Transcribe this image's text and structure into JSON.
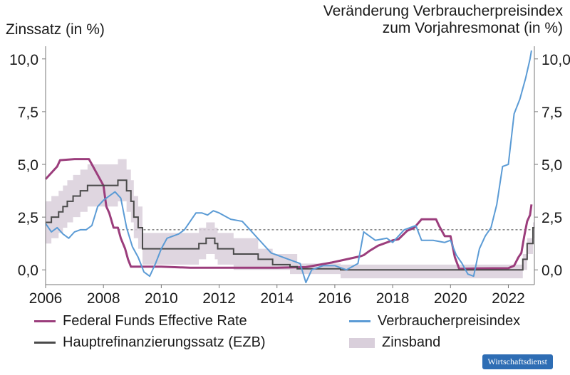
{
  "chart_data": {
    "type": "line",
    "left_axis_title": "Zinssatz (in %)",
    "right_axis_title_line1": "Veränderung Verbraucherpreisindex",
    "right_axis_title_line2": "zum Vorjahresmonat (in %)",
    "xlim": [
      2006,
      2022.9
    ],
    "ylim": [
      -0.7,
      10.6
    ],
    "x_ticks": [
      2006,
      2008,
      2010,
      2012,
      2014,
      2016,
      2018,
      2020,
      2022
    ],
    "x_tick_labels": [
      "2006",
      "2008",
      "2010",
      "2012",
      "2014",
      "2016",
      "2018",
      "2020",
      "2022"
    ],
    "y_ticks": [
      0,
      2.5,
      5,
      7.5,
      10
    ],
    "y_tick_labels": [
      "0,0",
      "2,5",
      "5,0",
      "7,5",
      "10,0"
    ],
    "reference_line": 1.9,
    "colors": {
      "fed": "#9b3d7c",
      "ezb": "#4a4a4a",
      "vpi": "#5b9bd5",
      "band": "#d9cfdb"
    },
    "series": [
      {
        "name": "Federal Funds Effective Rate",
        "style": "line",
        "color": "#9b3d7c",
        "x": [
          2006.0,
          2006.2,
          2006.4,
          2006.5,
          2007.0,
          2007.5,
          2007.6,
          2007.7,
          2007.8,
          2007.9,
          2008.0,
          2008.1,
          2008.2,
          2008.35,
          2008.5,
          2008.6,
          2008.75,
          2008.85,
          2008.95,
          2009.2,
          2010.0,
          2011.0,
          2012.0,
          2013.0,
          2014.0,
          2015.0,
          2015.9,
          2016.0,
          2016.9,
          2017.0,
          2017.2,
          2017.5,
          2018.0,
          2018.2,
          2018.5,
          2018.75,
          2019.0,
          2019.5,
          2019.6,
          2019.8,
          2020.0,
          2020.15,
          2020.3,
          2021.0,
          2022.0,
          2022.2,
          2022.35,
          2022.45,
          2022.55,
          2022.65,
          2022.75,
          2022.8
        ],
        "y": [
          4.3,
          4.6,
          4.9,
          5.2,
          5.25,
          5.25,
          5.0,
          4.75,
          4.5,
          4.25,
          4.0,
          3.0,
          2.7,
          2.0,
          2.0,
          1.5,
          1.0,
          0.5,
          0.15,
          0.15,
          0.15,
          0.1,
          0.1,
          0.1,
          0.1,
          0.13,
          0.35,
          0.38,
          0.65,
          0.7,
          0.9,
          1.15,
          1.4,
          1.45,
          1.85,
          2.0,
          2.4,
          2.4,
          2.1,
          1.6,
          1.6,
          0.6,
          0.05,
          0.07,
          0.08,
          0.2,
          0.6,
          0.8,
          1.6,
          2.3,
          2.6,
          3.1
        ]
      },
      {
        "name": "Hauptrefinanzierungssatz (EZB)",
        "style": "step",
        "color": "#4a4a4a",
        "x": [
          2006.0,
          2006.2,
          2006.45,
          2006.6,
          2006.75,
          2006.95,
          2007.2,
          2007.45,
          2008.5,
          2008.8,
          2008.95,
          2009.05,
          2009.2,
          2009.35,
          2011.3,
          2011.55,
          2011.85,
          2011.95,
          2012.5,
          2013.35,
          2013.85,
          2014.45,
          2014.7,
          2016.2,
          2022.5,
          2022.65,
          2022.85
        ],
        "y": [
          2.25,
          2.5,
          2.75,
          3.0,
          3.25,
          3.5,
          3.75,
          4.0,
          4.25,
          3.75,
          3.25,
          2.5,
          2.0,
          1.0,
          1.25,
          1.5,
          1.25,
          1.0,
          0.75,
          0.5,
          0.25,
          0.15,
          0.05,
          0.0,
          0.5,
          1.25,
          2.0
        ]
      },
      {
        "name": "Verbraucherpreisindex",
        "style": "line",
        "color": "#5b9bd5",
        "x": [
          2006.0,
          2006.2,
          2006.4,
          2006.6,
          2006.8,
          2007.0,
          2007.2,
          2007.4,
          2007.6,
          2007.8,
          2008.0,
          2008.2,
          2008.4,
          2008.6,
          2008.8,
          2009.0,
          2009.2,
          2009.4,
          2009.6,
          2009.8,
          2010.0,
          2010.2,
          2010.4,
          2010.6,
          2010.8,
          2011.0,
          2011.2,
          2011.4,
          2011.6,
          2011.8,
          2012.0,
          2012.4,
          2012.8,
          2013.0,
          2013.4,
          2013.8,
          2014.0,
          2014.4,
          2014.8,
          2015.0,
          2015.2,
          2015.6,
          2016.0,
          2016.4,
          2016.8,
          2017.0,
          2017.4,
          2017.8,
          2018.0,
          2018.4,
          2018.8,
          2019.0,
          2019.4,
          2019.8,
          2020.0,
          2020.2,
          2020.4,
          2020.6,
          2020.8,
          2021.0,
          2021.2,
          2021.4,
          2021.6,
          2021.8,
          2022.0,
          2022.2,
          2022.4,
          2022.6,
          2022.75,
          2022.8
        ],
        "y": [
          2.2,
          1.8,
          2.0,
          1.7,
          1.5,
          1.8,
          1.9,
          1.9,
          2.1,
          3.0,
          3.3,
          3.5,
          3.7,
          3.4,
          2.0,
          1.1,
          0.6,
          -0.1,
          -0.3,
          0.3,
          1.0,
          1.5,
          1.6,
          1.7,
          1.9,
          2.3,
          2.7,
          2.7,
          2.6,
          2.8,
          2.7,
          2.4,
          2.3,
          2.0,
          1.4,
          0.8,
          0.7,
          0.5,
          0.3,
          -0.6,
          0.0,
          0.2,
          0.2,
          0.0,
          0.3,
          1.8,
          1.4,
          1.5,
          1.3,
          1.9,
          2.1,
          1.4,
          1.4,
          1.3,
          1.4,
          0.7,
          0.3,
          -0.2,
          -0.3,
          1.0,
          1.6,
          2.0,
          3.1,
          4.9,
          5.0,
          7.4,
          8.1,
          9.1,
          10.0,
          10.4
        ]
      },
      {
        "name": "Zinsband",
        "style": "band",
        "color": "#d9cfdb",
        "x": [
          2006.0,
          2006.2,
          2006.45,
          2006.6,
          2006.75,
          2006.95,
          2007.2,
          2007.45,
          2008.5,
          2008.8,
          2008.95,
          2009.05,
          2009.2,
          2009.35,
          2011.3,
          2011.55,
          2011.85,
          2011.95,
          2012.5,
          2013.35,
          2013.85,
          2014.45,
          2014.7,
          2016.2,
          2022.5,
          2022.65,
          2022.85
        ],
        "lower": [
          1.25,
          1.5,
          1.75,
          2.0,
          2.25,
          2.5,
          2.75,
          3.0,
          3.25,
          2.75,
          2.25,
          1.5,
          1.0,
          0.25,
          0.5,
          0.75,
          0.5,
          0.25,
          0.0,
          0.0,
          0.0,
          -0.2,
          -0.2,
          -0.4,
          0.0,
          0.75,
          1.5
        ],
        "upper": [
          3.25,
          3.5,
          3.75,
          4.0,
          4.25,
          4.5,
          4.75,
          5.0,
          5.25,
          4.75,
          4.25,
          3.5,
          3.0,
          1.75,
          2.0,
          2.25,
          2.0,
          1.75,
          1.5,
          1.0,
          0.75,
          0.75,
          0.3,
          0.25,
          0.75,
          1.5,
          2.25
        ]
      }
    ]
  },
  "legend": [
    {
      "label": "Federal Funds Effective Rate",
      "color": "#9b3d7c"
    },
    {
      "label": "Hauptrefinanzierungssatz (EZB)",
      "color": "#4a4a4a"
    },
    {
      "label": "Verbraucherpreisindex",
      "color": "#5b9bd5"
    },
    {
      "label": "Zinsband",
      "color": "#d9cfdb"
    }
  ],
  "brand": "Wirtschaftsdienst"
}
